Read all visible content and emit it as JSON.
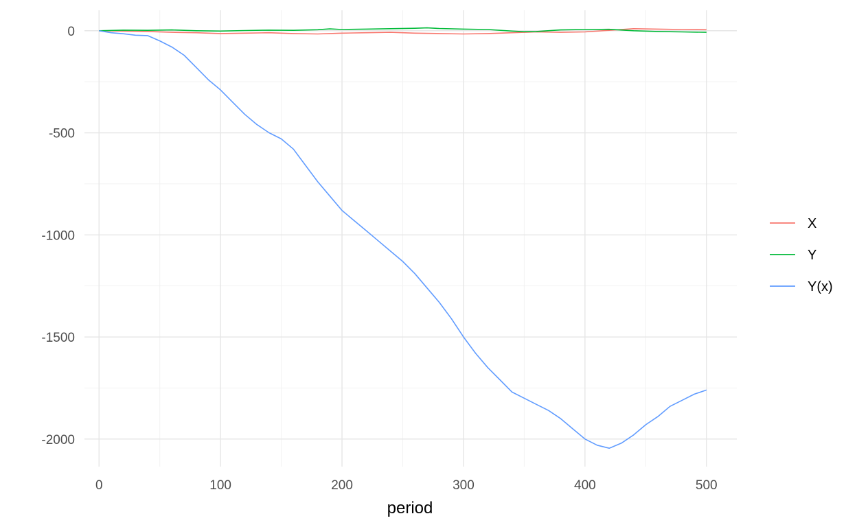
{
  "chart_data": {
    "type": "line",
    "title": "",
    "xlabel": "period",
    "ylabel": "",
    "xlim": [
      -12,
      525
    ],
    "ylim": [
      -2135,
      100
    ],
    "xticks": [
      0,
      100,
      200,
      300,
      400,
      500
    ],
    "yticks": [
      0,
      -500,
      -1000,
      -1500,
      -2000
    ],
    "grid": true,
    "legend_position": "right",
    "series": [
      {
        "name": "X",
        "color": "#F8766D",
        "points": [
          [
            0,
            0
          ],
          [
            20,
            -2
          ],
          [
            40,
            -4
          ],
          [
            60,
            -8
          ],
          [
            80,
            -10
          ],
          [
            100,
            -14
          ],
          [
            120,
            -12
          ],
          [
            140,
            -10
          ],
          [
            160,
            -14
          ],
          [
            180,
            -16
          ],
          [
            200,
            -12
          ],
          [
            220,
            -10
          ],
          [
            240,
            -8
          ],
          [
            260,
            -12
          ],
          [
            280,
            -14
          ],
          [
            300,
            -16
          ],
          [
            320,
            -14
          ],
          [
            340,
            -10
          ],
          [
            360,
            -6
          ],
          [
            380,
            -8
          ],
          [
            400,
            -6
          ],
          [
            420,
            2
          ],
          [
            440,
            10
          ],
          [
            460,
            8
          ],
          [
            480,
            6
          ],
          [
            500,
            5
          ]
        ]
      },
      {
        "name": "Y",
        "color": "#00BA38",
        "points": [
          [
            0,
            0
          ],
          [
            20,
            3
          ],
          [
            40,
            2
          ],
          [
            60,
            4
          ],
          [
            80,
            0
          ],
          [
            100,
            -2
          ],
          [
            120,
            1
          ],
          [
            140,
            3
          ],
          [
            160,
            2
          ],
          [
            180,
            5
          ],
          [
            190,
            9
          ],
          [
            200,
            6
          ],
          [
            220,
            8
          ],
          [
            240,
            10
          ],
          [
            260,
            12
          ],
          [
            270,
            14
          ],
          [
            280,
            11
          ],
          [
            300,
            8
          ],
          [
            320,
            6
          ],
          [
            340,
            -2
          ],
          [
            350,
            -5
          ],
          [
            360,
            -4
          ],
          [
            380,
            4
          ],
          [
            400,
            6
          ],
          [
            420,
            7
          ],
          [
            440,
            0
          ],
          [
            460,
            -4
          ],
          [
            480,
            -6
          ],
          [
            500,
            -8
          ]
        ]
      },
      {
        "name": "Y(x)",
        "color": "#619CFF",
        "points": [
          [
            0,
            0
          ],
          [
            10,
            -10
          ],
          [
            20,
            -15
          ],
          [
            30,
            -22
          ],
          [
            40,
            -24
          ],
          [
            50,
            -50
          ],
          [
            60,
            -80
          ],
          [
            70,
            -120
          ],
          [
            80,
            -180
          ],
          [
            90,
            -240
          ],
          [
            100,
            -290
          ],
          [
            110,
            -350
          ],
          [
            120,
            -410
          ],
          [
            130,
            -460
          ],
          [
            140,
            -500
          ],
          [
            150,
            -530
          ],
          [
            160,
            -580
          ],
          [
            170,
            -660
          ],
          [
            180,
            -740
          ],
          [
            190,
            -810
          ],
          [
            200,
            -880
          ],
          [
            210,
            -930
          ],
          [
            220,
            -980
          ],
          [
            230,
            -1030
          ],
          [
            240,
            -1080
          ],
          [
            250,
            -1130
          ],
          [
            260,
            -1190
          ],
          [
            270,
            -1260
          ],
          [
            280,
            -1330
          ],
          [
            290,
            -1410
          ],
          [
            300,
            -1500
          ],
          [
            310,
            -1580
          ],
          [
            320,
            -1650
          ],
          [
            330,
            -1710
          ],
          [
            340,
            -1770
          ],
          [
            350,
            -1800
          ],
          [
            360,
            -1830
          ],
          [
            370,
            -1860
          ],
          [
            380,
            -1900
          ],
          [
            390,
            -1950
          ],
          [
            400,
            -2000
          ],
          [
            410,
            -2030
          ],
          [
            420,
            -2045
          ],
          [
            430,
            -2020
          ],
          [
            440,
            -1980
          ],
          [
            450,
            -1930
          ],
          [
            460,
            -1890
          ],
          [
            470,
            -1840
          ],
          [
            480,
            -1810
          ],
          [
            490,
            -1780
          ],
          [
            500,
            -1760
          ]
        ]
      }
    ]
  }
}
